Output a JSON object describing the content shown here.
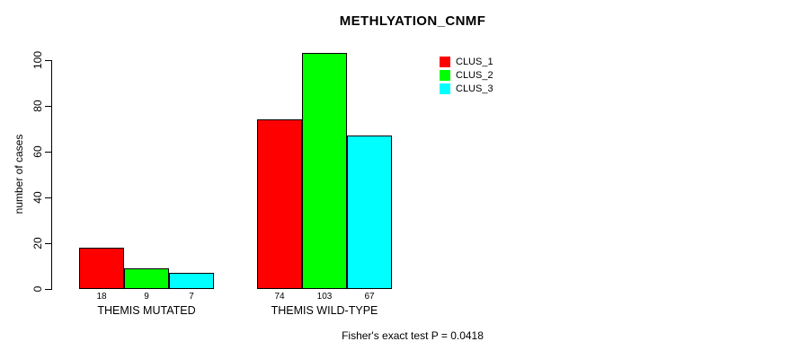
{
  "page": {
    "background": "#FFFFFF"
  },
  "header": {
    "title": "METHLYATION_CNMF"
  },
  "chart_data": {
    "type": "bar",
    "title": "METHLYATION_CNMF",
    "xlabel": "",
    "ylabel": "number of cases",
    "categories": [
      "THEMIS MUTATED",
      "THEMIS WILD-TYPE"
    ],
    "series": [
      {
        "name": "CLUS_1",
        "color": "#FF0000",
        "values": [
          18,
          74
        ]
      },
      {
        "name": "CLUS_2",
        "color": "#00FF00",
        "values": [
          9,
          103
        ]
      },
      {
        "name": "CLUS_3",
        "color": "#00FFFF",
        "values": [
          7,
          67
        ]
      }
    ],
    "yticks": [
      0,
      20,
      40,
      60,
      80,
      100
    ],
    "ylim": [
      0,
      105
    ],
    "grid": false,
    "bar_value_labels": [
      [
        18,
        9,
        7
      ],
      [
        74,
        103,
        67
      ]
    ],
    "legend": {
      "position": "top-right",
      "entries": [
        "CLUS_1",
        "CLUS_2",
        "CLUS_3"
      ]
    },
    "annotation": "Fisher's exact test P = 0.0418"
  },
  "footer": {
    "caption": "Fisher's exact test P = 0.0418"
  }
}
